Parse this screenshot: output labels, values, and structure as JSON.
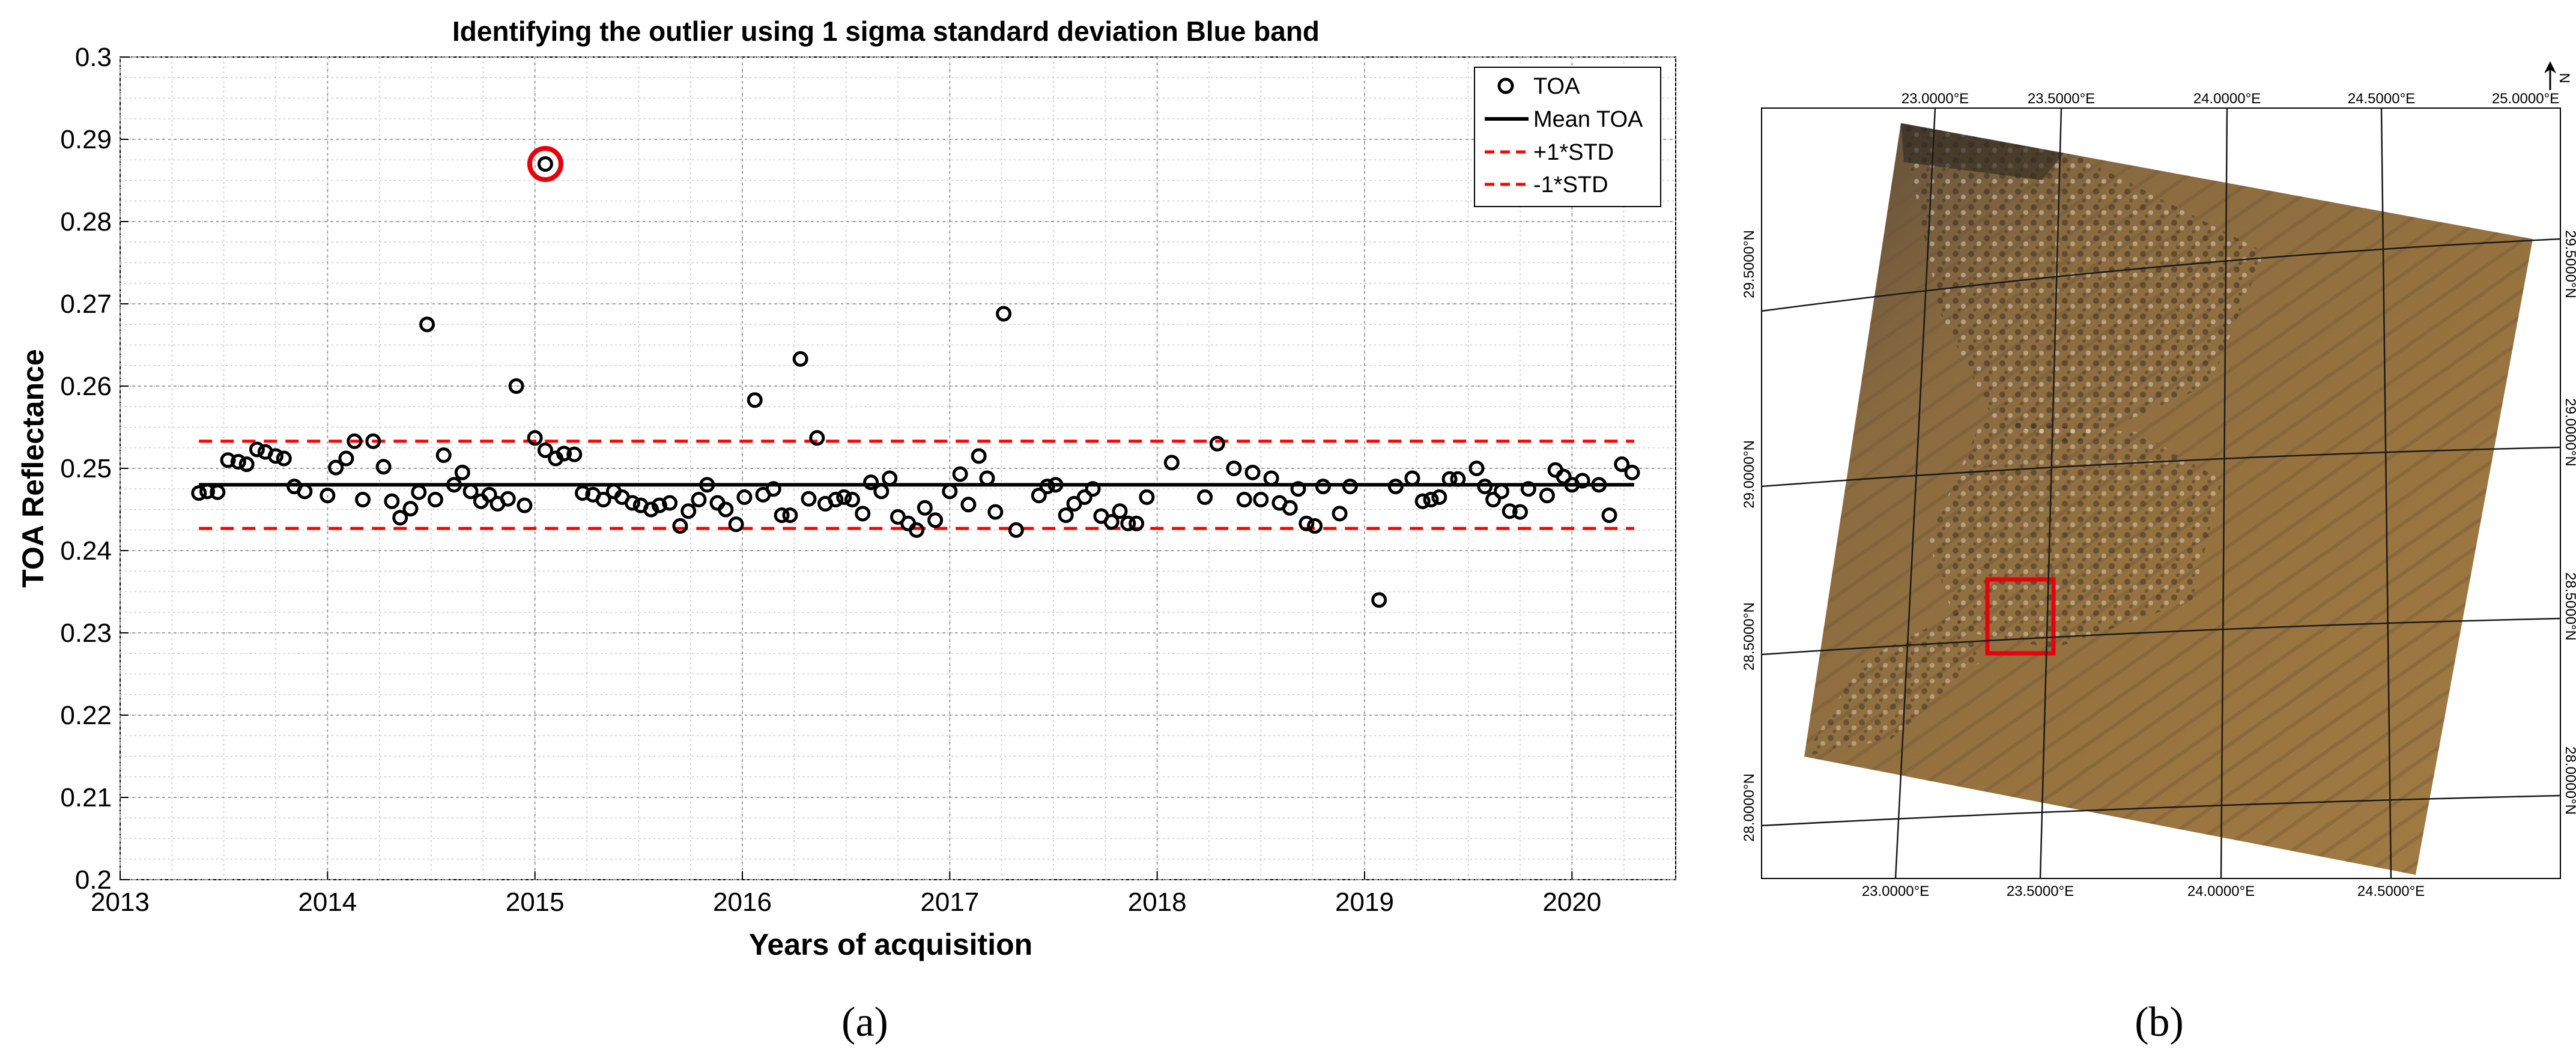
{
  "chart_data": {
    "type": "scatter",
    "title": "Identifying the outlier using 1 sigma standard deviation Blue band",
    "xlabel": "Years of acquisition",
    "ylabel": "TOA Reflectance",
    "xlim": [
      2013,
      2020.5
    ],
    "ylim": [
      0.2,
      0.3
    ],
    "xticks": [
      "2013",
      "2014",
      "2015",
      "2016",
      "2017",
      "2018",
      "2019",
      "2020"
    ],
    "yticks": [
      "0.2",
      "0.21",
      "0.22",
      "0.23",
      "0.24",
      "0.25",
      "0.26",
      "0.27",
      "0.28",
      "0.29",
      "0.3"
    ],
    "grid": true,
    "legend_position": "top-right",
    "legend": [
      "TOA",
      "Mean TOA",
      "+1*STD",
      "-1*STD"
    ],
    "mean": 0.248,
    "plus_std": 0.2533,
    "minus_std": 0.2427,
    "line_x_range": [
      2013.38,
      2020.3
    ],
    "outlier": {
      "x": 2015.05,
      "y": 0.287
    },
    "colors": {
      "points": "#000000",
      "mean": "#000000",
      "std": "#ff0000",
      "outlier_circle": "#e8000b"
    },
    "points": [
      [
        2013.38,
        0.247
      ],
      [
        2013.42,
        0.2472
      ],
      [
        2013.47,
        0.2471
      ],
      [
        2013.52,
        0.251
      ],
      [
        2013.57,
        0.2508
      ],
      [
        2013.61,
        0.2505
      ],
      [
        2013.66,
        0.2523
      ],
      [
        2013.7,
        0.252
      ],
      [
        2013.75,
        0.2515
      ],
      [
        2013.79,
        0.2512
      ],
      [
        2013.84,
        0.2478
      ],
      [
        2013.89,
        0.2472
      ],
      [
        2014.0,
        0.2467
      ],
      [
        2014.04,
        0.2501
      ],
      [
        2014.09,
        0.2512
      ],
      [
        2014.13,
        0.2533
      ],
      [
        2014.17,
        0.2462
      ],
      [
        2014.22,
        0.2533
      ],
      [
        2014.27,
        0.2502
      ],
      [
        2014.31,
        0.246
      ],
      [
        2014.35,
        0.244
      ],
      [
        2014.4,
        0.2451
      ],
      [
        2014.44,
        0.2471
      ],
      [
        2014.48,
        0.2675
      ],
      [
        2014.52,
        0.2462
      ],
      [
        2014.56,
        0.2516
      ],
      [
        2014.61,
        0.248
      ],
      [
        2014.65,
        0.2495
      ],
      [
        2014.69,
        0.2472
      ],
      [
        2014.74,
        0.246
      ],
      [
        2014.78,
        0.2468
      ],
      [
        2014.82,
        0.2457
      ],
      [
        2014.87,
        0.2463
      ],
      [
        2014.91,
        0.26
      ],
      [
        2014.95,
        0.2455
      ],
      [
        2015.0,
        0.2537
      ],
      [
        2015.05,
        0.2522
      ],
      [
        2015.05,
        0.287
      ],
      [
        2015.1,
        0.2512
      ],
      [
        2015.14,
        0.2518
      ],
      [
        2015.19,
        0.2517
      ],
      [
        2015.23,
        0.247
      ],
      [
        2015.28,
        0.2468
      ],
      [
        2015.33,
        0.2462
      ],
      [
        2015.38,
        0.2472
      ],
      [
        2015.42,
        0.2465
      ],
      [
        2015.47,
        0.2458
      ],
      [
        2015.51,
        0.2455
      ],
      [
        2015.56,
        0.245
      ],
      [
        2015.6,
        0.2455
      ],
      [
        2015.65,
        0.2458
      ],
      [
        2015.7,
        0.243
      ],
      [
        2015.74,
        0.2448
      ],
      [
        2015.79,
        0.2462
      ],
      [
        2015.83,
        0.248
      ],
      [
        2015.88,
        0.2458
      ],
      [
        2015.92,
        0.245
      ],
      [
        2015.97,
        0.2432
      ],
      [
        2016.01,
        0.2465
      ],
      [
        2016.06,
        0.2583
      ],
      [
        2016.1,
        0.2468
      ],
      [
        2016.15,
        0.2475
      ],
      [
        2016.19,
        0.2443
      ],
      [
        2016.23,
        0.2443
      ],
      [
        2016.28,
        0.2633
      ],
      [
        2016.32,
        0.2463
      ],
      [
        2016.36,
        0.2537
      ],
      [
        2016.4,
        0.2457
      ],
      [
        2016.45,
        0.2462
      ],
      [
        2016.49,
        0.2465
      ],
      [
        2016.53,
        0.2462
      ],
      [
        2016.58,
        0.2445
      ],
      [
        2016.62,
        0.2483
      ],
      [
        2016.67,
        0.2472
      ],
      [
        2016.71,
        0.2488
      ],
      [
        2016.75,
        0.2441
      ],
      [
        2016.8,
        0.2433
      ],
      [
        2016.84,
        0.2425
      ],
      [
        2016.88,
        0.2452
      ],
      [
        2016.93,
        0.2437
      ],
      [
        2017.0,
        0.2472
      ],
      [
        2017.05,
        0.2493
      ],
      [
        2017.09,
        0.2456
      ],
      [
        2017.14,
        0.2515
      ],
      [
        2017.18,
        0.2488
      ],
      [
        2017.22,
        0.2447
      ],
      [
        2017.26,
        0.2688
      ],
      [
        2017.32,
        0.2425
      ],
      [
        2017.43,
        0.2467
      ],
      [
        2017.47,
        0.2478
      ],
      [
        2017.51,
        0.248
      ],
      [
        2017.56,
        0.2443
      ],
      [
        2017.6,
        0.2457
      ],
      [
        2017.65,
        0.2465
      ],
      [
        2017.69,
        0.2475
      ],
      [
        2017.73,
        0.2442
      ],
      [
        2017.78,
        0.2435
      ],
      [
        2017.82,
        0.2448
      ],
      [
        2017.86,
        0.2433
      ],
      [
        2017.9,
        0.2433
      ],
      [
        2017.95,
        0.2465
      ],
      [
        2018.07,
        0.2507
      ],
      [
        2018.23,
        0.2465
      ],
      [
        2018.29,
        0.253
      ],
      [
        2018.37,
        0.25
      ],
      [
        2018.42,
        0.2462
      ],
      [
        2018.46,
        0.2495
      ],
      [
        2018.5,
        0.2462
      ],
      [
        2018.55,
        0.2488
      ],
      [
        2018.59,
        0.2458
      ],
      [
        2018.64,
        0.2452
      ],
      [
        2018.68,
        0.2475
      ],
      [
        2018.72,
        0.2433
      ],
      [
        2018.76,
        0.243
      ],
      [
        2018.8,
        0.2478
      ],
      [
        2018.88,
        0.2445
      ],
      [
        2018.93,
        0.2478
      ],
      [
        2019.07,
        0.234
      ],
      [
        2019.15,
        0.2478
      ],
      [
        2019.23,
        0.2488
      ],
      [
        2019.28,
        0.246
      ],
      [
        2019.32,
        0.2462
      ],
      [
        2019.36,
        0.2465
      ],
      [
        2019.41,
        0.2487
      ],
      [
        2019.45,
        0.2487
      ],
      [
        2019.54,
        0.25
      ],
      [
        2019.58,
        0.2478
      ],
      [
        2019.62,
        0.2462
      ],
      [
        2019.66,
        0.2472
      ],
      [
        2019.7,
        0.2448
      ],
      [
        2019.75,
        0.2447
      ],
      [
        2019.79,
        0.2475
      ],
      [
        2019.88,
        0.2467
      ],
      [
        2019.92,
        0.2498
      ],
      [
        2019.96,
        0.249
      ],
      [
        2020.0,
        0.248
      ],
      [
        2020.05,
        0.2485
      ],
      [
        2020.13,
        0.248
      ],
      [
        2020.18,
        0.2443
      ],
      [
        2020.24,
        0.2505
      ],
      [
        2020.29,
        0.2495
      ]
    ]
  },
  "map": {
    "top_lon_labels": [
      "23.0000°E",
      "23.5000°E",
      "24.0000°E",
      "24.5000°E",
      "25.0000°E"
    ],
    "bottom_lon_labels": [
      "23.0000°E",
      "23.5000°E",
      "24.0000°E",
      "24.5000°E"
    ],
    "left_lat_labels": [
      "29.5000°N",
      "29.0000°N",
      "28.5000°N",
      "28.0000°N"
    ],
    "right_lat_labels": [
      "29.5000°N",
      "29.0000°N",
      "28.5000°N",
      "28.0000°N"
    ],
    "north_label": "N",
    "colors": {
      "sand": "#8a6a3e",
      "highlight_box": "#e8000b",
      "graticule": "#1a1a1a"
    }
  },
  "panel_labels": {
    "a": "(a)",
    "b": "(b)"
  }
}
